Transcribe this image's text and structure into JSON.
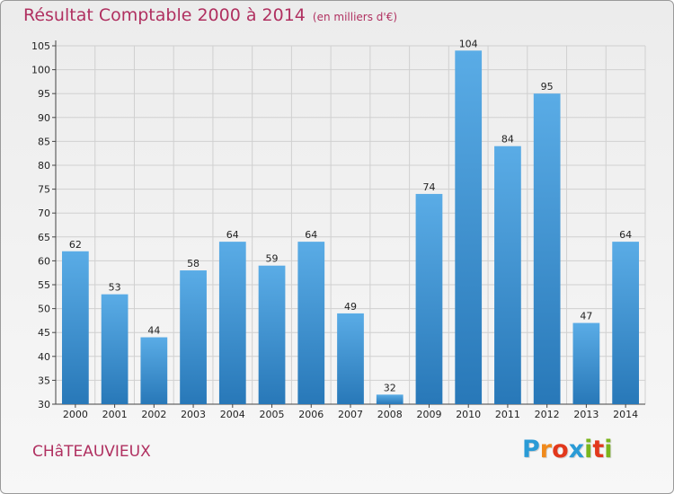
{
  "chart_data": {
    "type": "bar",
    "title": "Résultat Comptable 2000 à 2014",
    "subtitle": "(en milliers d'€)",
    "categories": [
      "2000",
      "2001",
      "2002",
      "2003",
      "2004",
      "2005",
      "2006",
      "2007",
      "2008",
      "2009",
      "2010",
      "2011",
      "2012",
      "2013",
      "2014"
    ],
    "values": [
      62,
      53,
      44,
      58,
      64,
      59,
      64,
      49,
      32,
      74,
      104,
      84,
      95,
      47,
      64
    ],
    "ylim": [
      30,
      105
    ],
    "yticks": [
      30,
      35,
      40,
      45,
      50,
      55,
      60,
      65,
      70,
      75,
      80,
      85,
      90,
      95,
      100,
      105
    ],
    "grid": true,
    "xlabel": "",
    "ylabel": ""
  },
  "footer": {
    "town": "CHâTEAUVIEUX",
    "logo_letters": [
      "P",
      "r",
      "o",
      "x",
      "i",
      "t",
      "i"
    ]
  },
  "colors": {
    "accent": "#b03060",
    "bar_light": "#5aace6",
    "bar_dark": "#2878b8",
    "grid": "#d0d0d0",
    "logo": [
      "#2a9bd6",
      "#f08a1c",
      "#e2381c",
      "#2a9bd6",
      "#7ab51d",
      "#e2381c",
      "#7ab51d"
    ]
  }
}
